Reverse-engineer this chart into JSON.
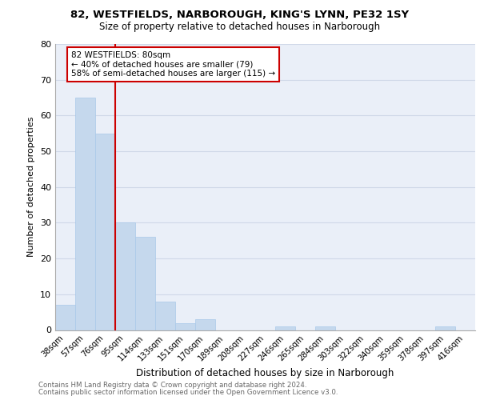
{
  "title1": "82, WESTFIELDS, NARBOROUGH, KING'S LYNN, PE32 1SY",
  "title2": "Size of property relative to detached houses in Narborough",
  "xlabel": "Distribution of detached houses by size in Narborough",
  "ylabel": "Number of detached properties",
  "categories": [
    "38sqm",
    "57sqm",
    "76sqm",
    "95sqm",
    "114sqm",
    "133sqm",
    "151sqm",
    "170sqm",
    "189sqm",
    "208sqm",
    "227sqm",
    "246sqm",
    "265sqm",
    "284sqm",
    "303sqm",
    "322sqm",
    "340sqm",
    "359sqm",
    "378sqm",
    "397sqm",
    "416sqm"
  ],
  "values": [
    7,
    65,
    55,
    30,
    26,
    8,
    2,
    3,
    0,
    0,
    0,
    1,
    0,
    1,
    0,
    0,
    0,
    0,
    0,
    1,
    0
  ],
  "bar_color": "#c5d8ed",
  "bar_edge_color": "#a8c8e8",
  "vline_color": "#cc0000",
  "vline_x_index": 2.5,
  "annotation_text": "82 WESTFIELDS: 80sqm\n← 40% of detached houses are smaller (79)\n58% of semi-detached houses are larger (115) →",
  "annotation_box_color": "#cc0000",
  "ylim": [
    0,
    80
  ],
  "yticks": [
    0,
    10,
    20,
    30,
    40,
    50,
    60,
    70,
    80
  ],
  "grid_color": "#d0d8e8",
  "background_color": "#eaeff8",
  "footer1": "Contains HM Land Registry data © Crown copyright and database right 2024.",
  "footer2": "Contains public sector information licensed under the Open Government Licence v3.0."
}
